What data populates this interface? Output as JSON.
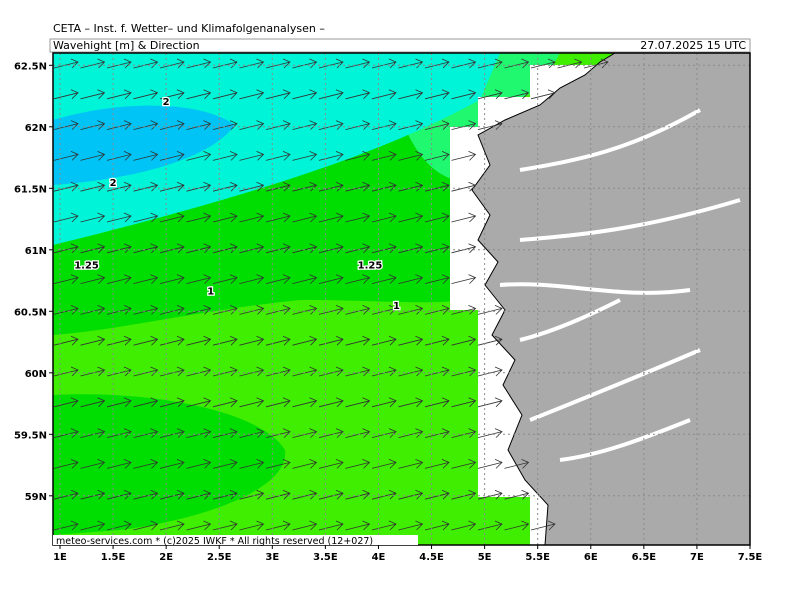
{
  "map": {
    "institute": "CETA – Inst. f. Wetter– und Klimafolgenanalysen –",
    "title": "Wavehight [m] & Direction",
    "valid_time": "27.07.2025 15 UTC",
    "footer": "meteo-services.com * (c)2025 IWKF * All rights reserved (12+027)",
    "xlim": [
      0.934,
      7.5
    ],
    "ylim": [
      58.6,
      62.6
    ],
    "xticks": [
      {
        "value": 1,
        "label": "1E"
      },
      {
        "value": 1.5,
        "label": "1.5E"
      },
      {
        "value": 2,
        "label": "2E"
      },
      {
        "value": 2.5,
        "label": "2.5E"
      },
      {
        "value": 3,
        "label": "3E"
      },
      {
        "value": 3.5,
        "label": "3.5E"
      },
      {
        "value": 4,
        "label": "4E"
      },
      {
        "value": 4.5,
        "label": "4.5E"
      },
      {
        "value": 5,
        "label": "5E"
      },
      {
        "value": 5.5,
        "label": "5.5E"
      },
      {
        "value": 6,
        "label": "6E"
      },
      {
        "value": 6.5,
        "label": "6.5E"
      },
      {
        "value": 7,
        "label": "7E"
      },
      {
        "value": 7.5,
        "label": "7.5E"
      }
    ],
    "yticks": [
      {
        "value": 59,
        "label": "59N"
      },
      {
        "value": 59.5,
        "label": "59.5N"
      },
      {
        "value": 60,
        "label": "60N"
      },
      {
        "value": 60.5,
        "label": "60.5N"
      },
      {
        "value": 61,
        "label": "61N"
      },
      {
        "value": 61.5,
        "label": "61.5N"
      },
      {
        "value": 62,
        "label": "62N"
      },
      {
        "value": 62.5,
        "label": "62.5N"
      }
    ],
    "contour_labels": [
      {
        "text": "2",
        "lon": 2.0,
        "lat": 62.21
      },
      {
        "text": "2",
        "lon": 1.5,
        "lat": 61.55
      },
      {
        "text": "1.25",
        "lon": 1.25,
        "lat": 60.88
      },
      {
        "text": "1.25",
        "lon": 3.92,
        "lat": 60.88
      },
      {
        "text": "1",
        "lon": 2.42,
        "lat": 60.67
      },
      {
        "text": "1",
        "lon": 4.17,
        "lat": 60.55
      }
    ]
  }
}
